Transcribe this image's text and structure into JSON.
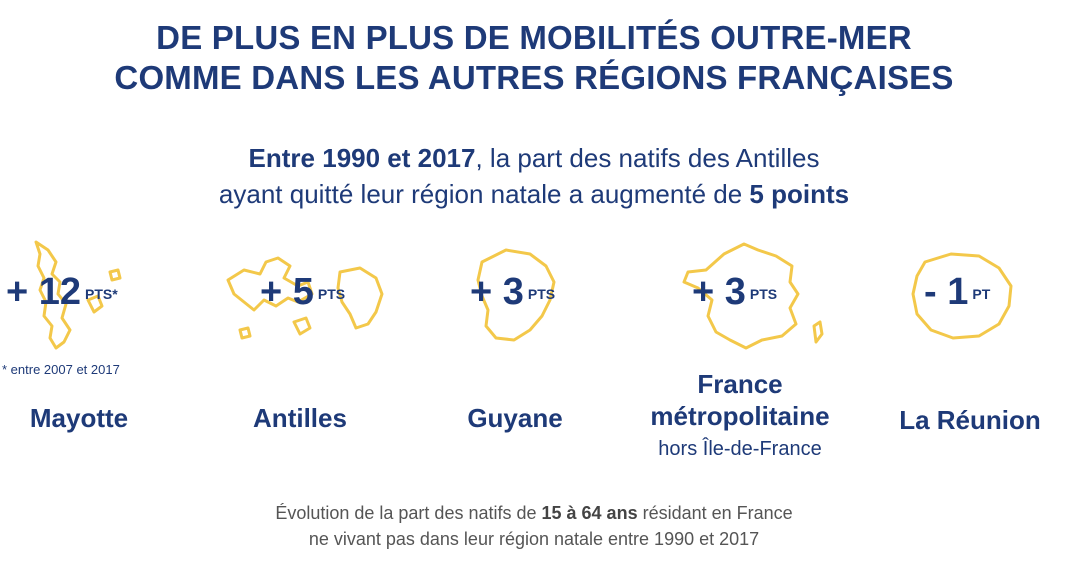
{
  "title": {
    "line1": "DE PLUS EN PLUS DE MOBILITÉS OUTRE-MER",
    "line2": "COMME DANS LES AUTRES RÉGIONS FRANÇAISES"
  },
  "subtitle": {
    "bold_period": "Entre 1990 et 2017",
    "text1": ", la part des natifs des Antilles",
    "text2": "ayant quitté leur région natale a augmenté de ",
    "bold_points": "5 points"
  },
  "regions": [
    {
      "name": "Mayotte",
      "value": "+ 12",
      "unit": "PTS*",
      "note": "* entre 2007 et 2017",
      "map_icon": "mayotte-outline"
    },
    {
      "name": "Antilles",
      "value": "+ 5",
      "unit": "PTS",
      "map_icon": "antilles-outline"
    },
    {
      "name": "Guyane",
      "value": "+ 3",
      "unit": "PTS",
      "map_icon": "guyane-outline"
    },
    {
      "name_line1": "France",
      "name_line2": "métropolitaine",
      "sublabel": "hors Île-de-France",
      "value": "+ 3",
      "unit": "PTS",
      "map_icon": "france-outline"
    },
    {
      "name": "La Réunion",
      "value": "- 1",
      "unit": "PT",
      "map_icon": "reunion-outline"
    }
  ],
  "footer": {
    "text1": "Évolution de la part des natifs de ",
    "bold": "15 à 64 ans",
    "text2": " résidant en France",
    "line2": "ne vivant pas dans leur région natale entre 1990 et 2017"
  },
  "colors": {
    "navy": "#1e3a78",
    "map_outline": "#f3c84a",
    "footer_gray": "#555555"
  }
}
